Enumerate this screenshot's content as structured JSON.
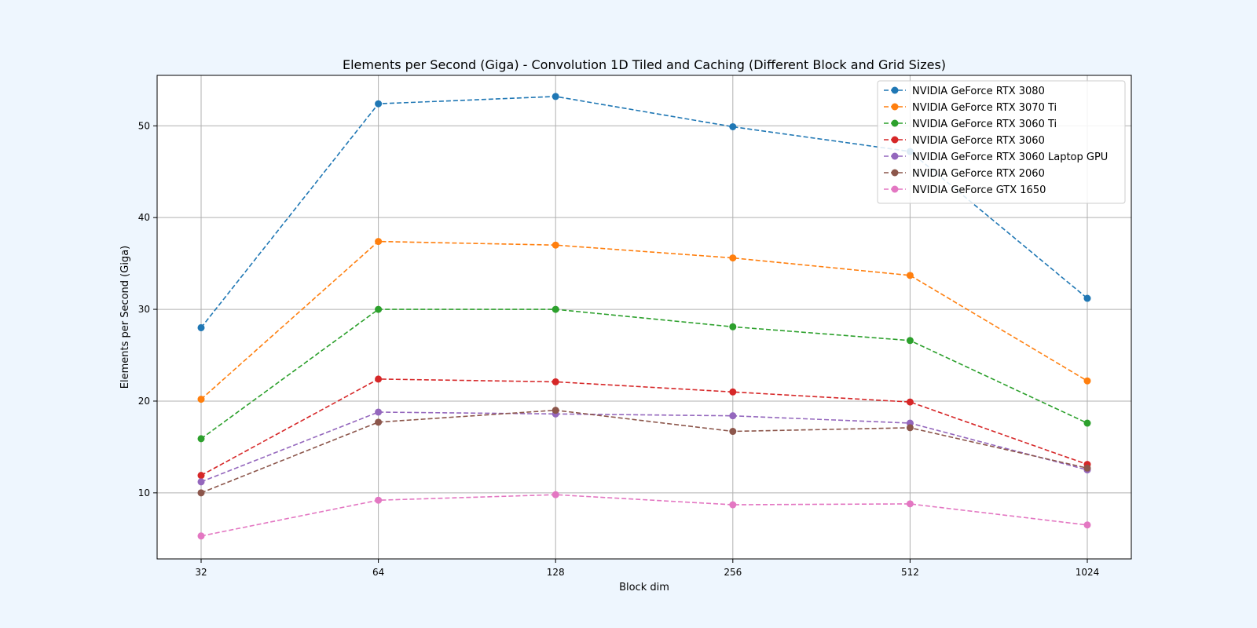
{
  "chart_data": {
    "type": "line",
    "title": "Elements per Second (Giga) - Convolution 1D Tiled and Caching (Different Block and Grid Sizes)",
    "xlabel": "Block dim",
    "ylabel": "Elements per Second (Giga)",
    "categories": [
      "32",
      "64",
      "128",
      "256",
      "512",
      "1024"
    ],
    "ylim": [
      2.8,
      55.5
    ],
    "yticks": [
      10,
      20,
      30,
      40,
      50
    ],
    "grid": true,
    "legend_position": "top-right",
    "line_style": "dashed",
    "marker": "circle",
    "series": [
      {
        "name": "NVIDIA GeForce RTX 3080",
        "color": "#1f77b4",
        "values": [
          28.0,
          52.4,
          53.2,
          49.9,
          47.2,
          31.2
        ]
      },
      {
        "name": "NVIDIA GeForce RTX 3070 Ti",
        "color": "#ff7f0e",
        "values": [
          20.2,
          37.4,
          37.0,
          35.6,
          33.7,
          22.2
        ]
      },
      {
        "name": "NVIDIA GeForce RTX 3060 Ti",
        "color": "#2ca02c",
        "values": [
          15.9,
          30.0,
          30.0,
          28.1,
          26.6,
          17.6
        ]
      },
      {
        "name": "NVIDIA GeForce RTX 3060",
        "color": "#d62728",
        "values": [
          11.9,
          22.4,
          22.1,
          21.0,
          19.9,
          13.1
        ]
      },
      {
        "name": "NVIDIA GeForce RTX 3060 Laptop GPU",
        "color": "#9467bd",
        "values": [
          11.2,
          18.8,
          18.6,
          18.4,
          17.6,
          12.5
        ]
      },
      {
        "name": "NVIDIA GeForce RTX 2060",
        "color": "#8c564b",
        "values": [
          10.0,
          17.7,
          19.0,
          16.7,
          17.1,
          12.7
        ]
      },
      {
        "name": "NVIDIA GeForce GTX 1650",
        "color": "#e377c2",
        "values": [
          5.3,
          9.2,
          9.8,
          8.7,
          8.8,
          6.5
        ]
      }
    ]
  }
}
